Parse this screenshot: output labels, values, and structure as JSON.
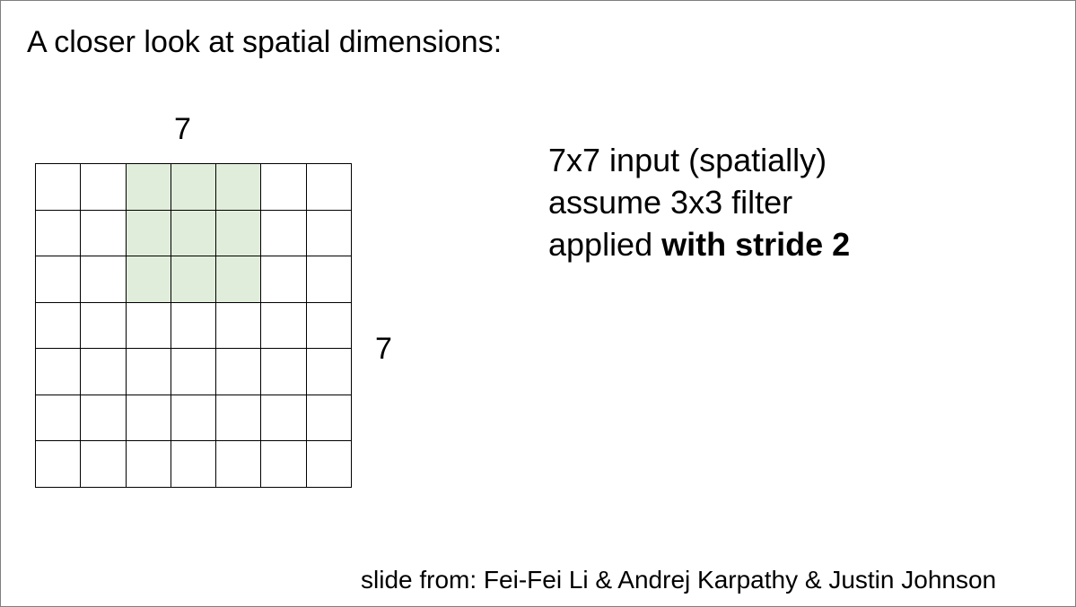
{
  "title": "A closer look at spatial dimensions:",
  "grid": {
    "rows": 7,
    "cols": 7,
    "top_label": "7",
    "right_label": "7",
    "highlight_rows": [
      0,
      1,
      2
    ],
    "highlight_cols": [
      2,
      3,
      4
    ],
    "highlight_color": "#e1eddb",
    "line_color": "#000000"
  },
  "description": {
    "line1": "7x7 input (spatially)",
    "line2": "assume 3x3 filter",
    "line3_plain": "applied ",
    "line3_bold": "with stride 2"
  },
  "credit": "slide from: Fei-Fei Li & Andrej Karpathy & Justin Johnson"
}
